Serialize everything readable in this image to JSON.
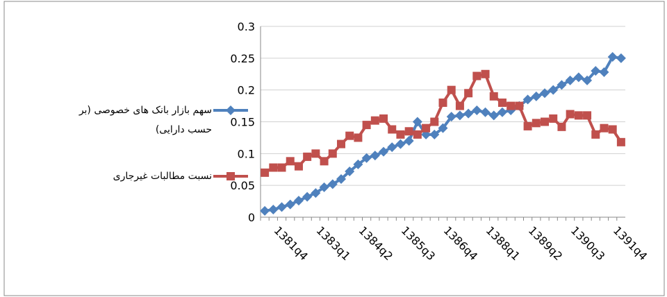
{
  "chart_data": {
    "type": "line",
    "categories": [
      null,
      "1381q4",
      null,
      null,
      null,
      null,
      "1383q1",
      null,
      null,
      null,
      null,
      "1384q2",
      null,
      null,
      null,
      null,
      "1385q3",
      null,
      null,
      null,
      null,
      "1386q4",
      null,
      null,
      null,
      null,
      "1388q1",
      null,
      null,
      null,
      null,
      "1389q2",
      null,
      null,
      null,
      null,
      "1390q3",
      null,
      null,
      null,
      null,
      "1391q4",
      null
    ],
    "series": [
      {
        "name": "سهم بازار بانک های خصوصی (بر حسب دارایی)",
        "color": "#4f81bd",
        "marker": "diamond",
        "values": [
          0.01,
          0.012,
          0.016,
          0.02,
          0.026,
          0.032,
          0.038,
          0.047,
          0.052,
          0.06,
          0.072,
          0.083,
          0.093,
          0.097,
          0.103,
          0.11,
          0.115,
          0.12,
          0.15,
          0.13,
          0.13,
          0.14,
          0.158,
          0.16,
          0.163,
          0.168,
          0.165,
          0.16,
          0.165,
          0.168,
          0.175,
          0.185,
          0.19,
          0.195,
          0.2,
          0.208,
          0.215,
          0.22,
          0.215,
          0.23,
          0.228,
          0.252,
          0.25
        ]
      },
      {
        "name": "نسبت مطالبات غیرجاری",
        "color": "#c0504d",
        "marker": "square",
        "values": [
          0.07,
          0.078,
          0.078,
          0.088,
          0.08,
          0.095,
          0.1,
          0.088,
          0.1,
          0.115,
          0.128,
          0.125,
          0.145,
          0.152,
          0.155,
          0.138,
          0.13,
          0.135,
          0.13,
          0.14,
          0.15,
          0.18,
          0.2,
          0.175,
          0.195,
          0.222,
          0.225,
          0.19,
          0.18,
          0.175,
          0.175,
          0.143,
          0.148,
          0.15,
          0.155,
          0.142,
          0.162,
          0.16,
          0.16,
          0.13,
          0.14,
          0.138,
          0.118
        ]
      }
    ],
    "ylim": [
      0,
      0.3
    ],
    "yticks": [
      0,
      0.05,
      0.1,
      0.15,
      0.2,
      0.25,
      0.3
    ],
    "grid": true,
    "legend": "left"
  }
}
